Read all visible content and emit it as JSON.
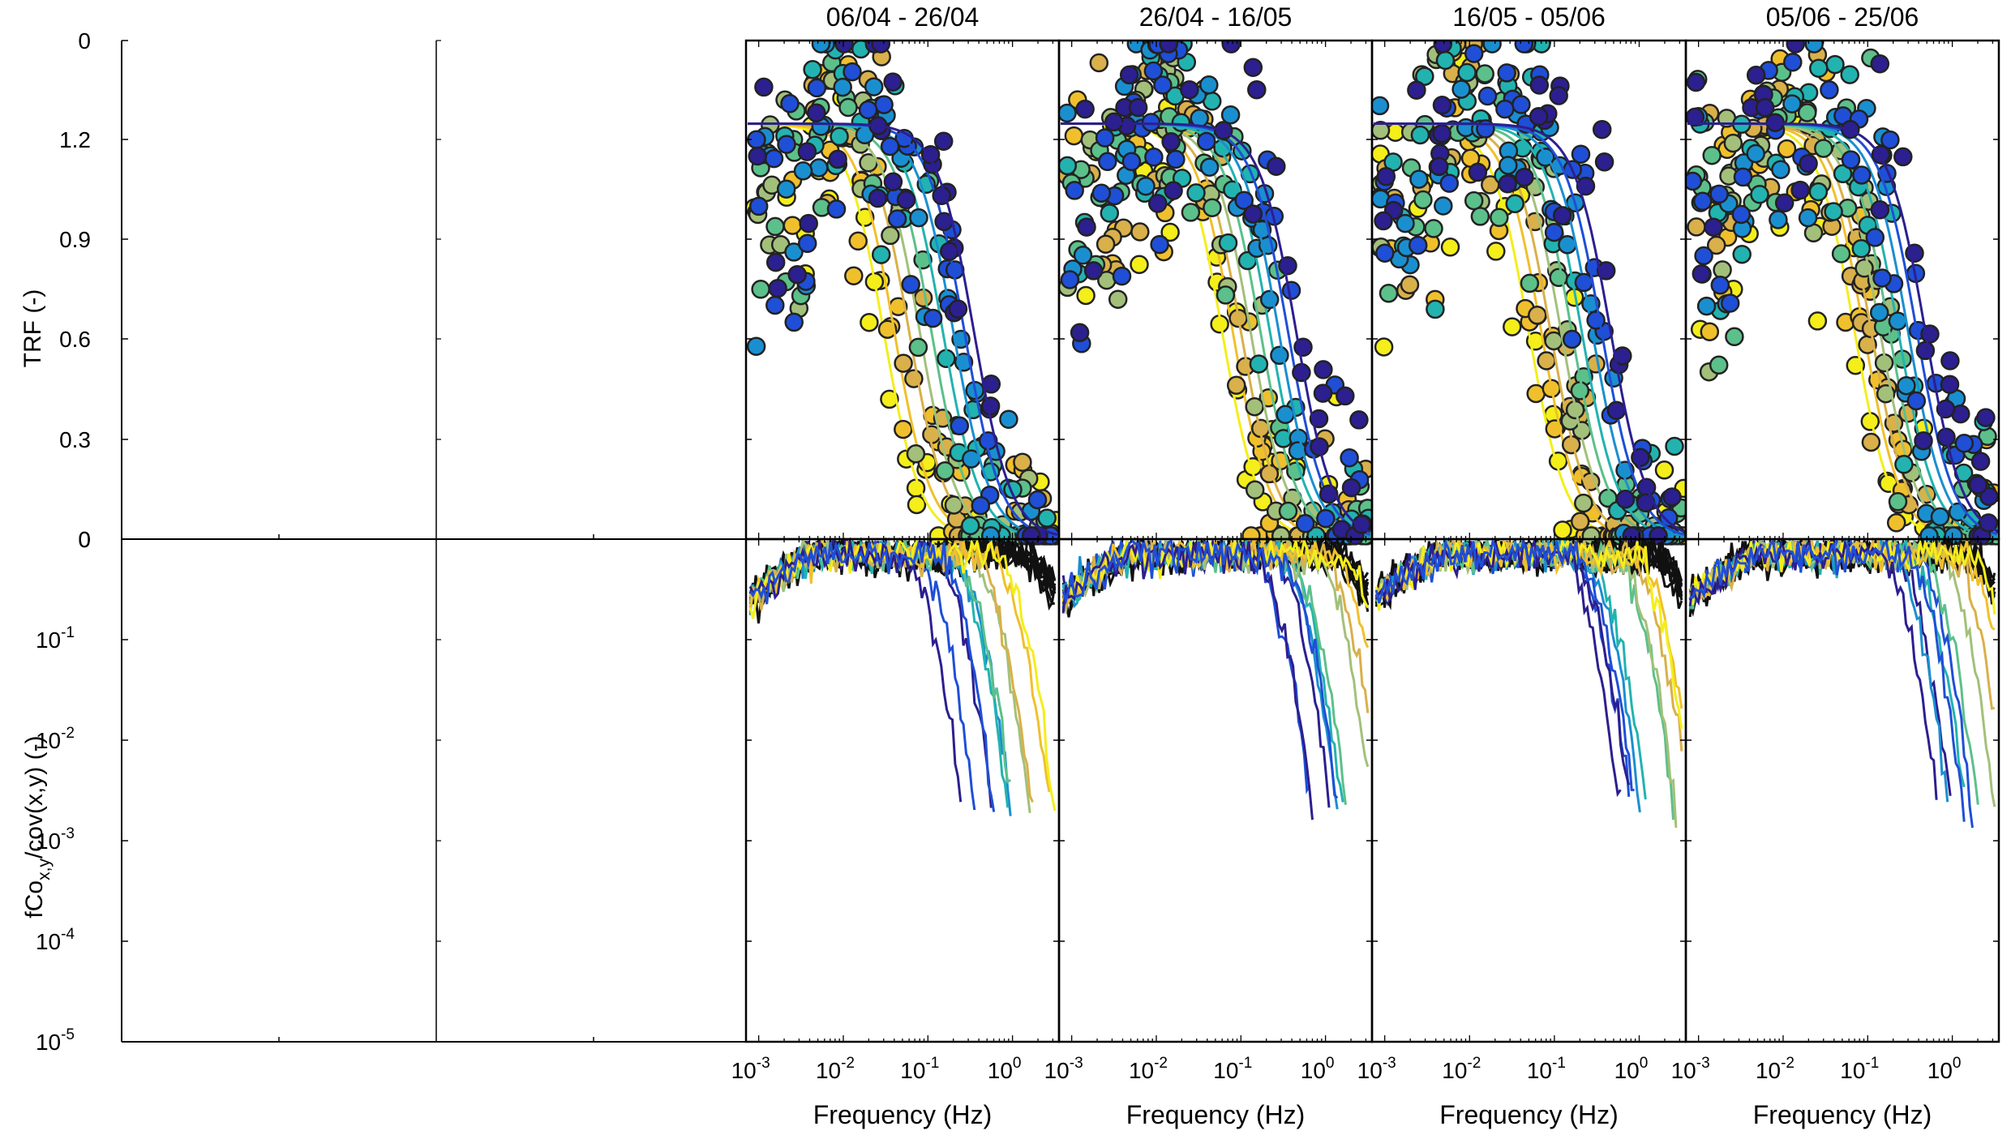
{
  "figure": {
    "ylabel_top": "TRF (-)",
    "ylabel_bottom_main": "fCo",
    "ylabel_bottom_sub": "x,y",
    "ylabel_bottom_rest": "/cov(x,y) (-)",
    "xlabel": "Frequency (Hz)"
  },
  "chart_data": {
    "type": "scatter",
    "panel_titles": [
      "06/04 - 26/04",
      "26/04 - 16/05",
      "16/05 - 05/06",
      "05/06 - 25/06"
    ],
    "xlabel": "Frequency (Hz)",
    "x_scale": "log",
    "x_tick_labels": [
      {
        "base": "10",
        "exp": "-3"
      },
      {
        "base": "10",
        "exp": "-2"
      },
      {
        "base": "10",
        "exp": "-1"
      },
      {
        "base": "10",
        "exp": "0"
      }
    ],
    "top": {
      "ylabel": "TRF (-)",
      "ylim": [
        0,
        1.5
      ],
      "y_tick_labels": [
        "0",
        "0.3",
        "0.6",
        "0.9",
        "1.2",
        "0"
      ]
    },
    "bottom": {
      "ylabel": "fCo_x,y/cov(x,y) (-)",
      "y_scale": "log",
      "ylim": [
        1e-05,
        1
      ],
      "y_tick_labels": [
        {
          "base": "10",
          "exp": "-5"
        },
        {
          "base": "10",
          "exp": "-4"
        },
        {
          "base": "10",
          "exp": "-3"
        },
        {
          "base": "10",
          "exp": "-2"
        },
        {
          "base": "10",
          "exp": "-1"
        },
        {
          "base": "0",
          "exp": ""
        }
      ]
    },
    "colormap": [
      "#2c1f8f",
      "#1f4fd6",
      "#1a8fd0",
      "#22b3b0",
      "#5cc08a",
      "#a3c07a",
      "#d9b04a",
      "#f0c02c",
      "#f4ee1a"
    ],
    "panels": [
      {
        "title": "06/04 - 26/04",
        "cutoff_hz": [
          0.03,
          0.04,
          0.06,
          0.08,
          0.11,
          0.15,
          0.2,
          0.27,
          0.35
        ]
      },
      {
        "title": "26/04 - 16/05",
        "cutoff_hz": [
          0.06,
          0.08,
          0.1,
          0.13,
          0.17,
          0.22,
          0.28,
          0.36,
          0.45
        ]
      },
      {
        "title": "16/05 - 05/06",
        "cutoff_hz": [
          0.05,
          0.07,
          0.09,
          0.12,
          0.16,
          0.21,
          0.28,
          0.36,
          0.46
        ]
      },
      {
        "title": "05/06 - 25/06",
        "cutoff_hz": [
          0.07,
          0.09,
          0.11,
          0.14,
          0.18,
          0.23,
          0.3,
          0.38,
          0.48
        ]
      }
    ]
  }
}
